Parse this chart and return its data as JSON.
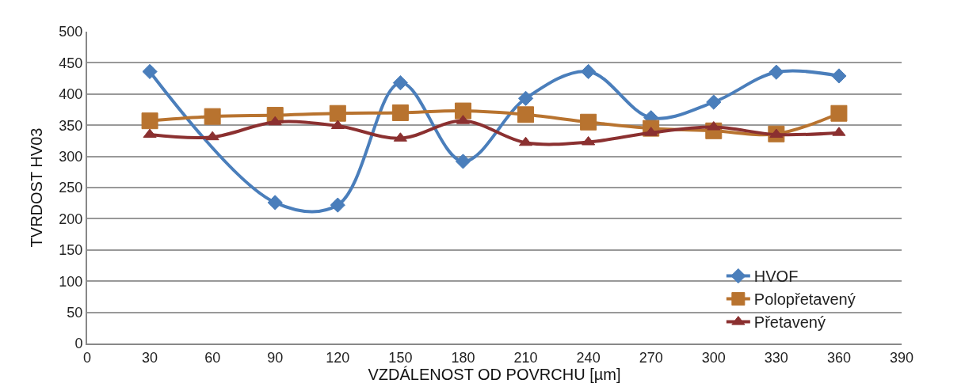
{
  "chart_data": {
    "type": "line",
    "xlabel": "VZDÁLENOST OD POVRCHU [µm]",
    "ylabel": "TVRDOST HV03",
    "x": [
      30,
      60,
      90,
      120,
      150,
      180,
      210,
      240,
      270,
      300,
      330,
      360
    ],
    "series": [
      {
        "name": "HVOF",
        "color": "#4a7ebb",
        "marker": "diamond",
        "values": [
          436,
          null,
          226,
          222,
          418,
          292,
          393,
          436,
          362,
          387,
          435,
          429
        ]
      },
      {
        "name": "Polopřetavený",
        "color": "#b8732f",
        "marker": "square",
        "values": [
          357,
          364,
          366,
          369,
          370,
          373,
          367,
          355,
          345,
          341,
          336,
          369
        ]
      },
      {
        "name": "Přetavený",
        "color": "#8b3030",
        "marker": "triangle",
        "values": [
          335,
          331,
          355,
          349,
          329,
          357,
          322,
          323,
          338,
          347,
          335,
          338
        ]
      }
    ],
    "xlim": [
      0,
      390
    ],
    "xticks": [
      0,
      30,
      60,
      90,
      120,
      150,
      180,
      210,
      240,
      270,
      300,
      330,
      360,
      390
    ],
    "ylim": [
      0,
      500
    ],
    "yticks": [
      0,
      50,
      100,
      150,
      200,
      250,
      300,
      350,
      400,
      450,
      500
    ],
    "grid": "y",
    "legend": "bottom right"
  }
}
